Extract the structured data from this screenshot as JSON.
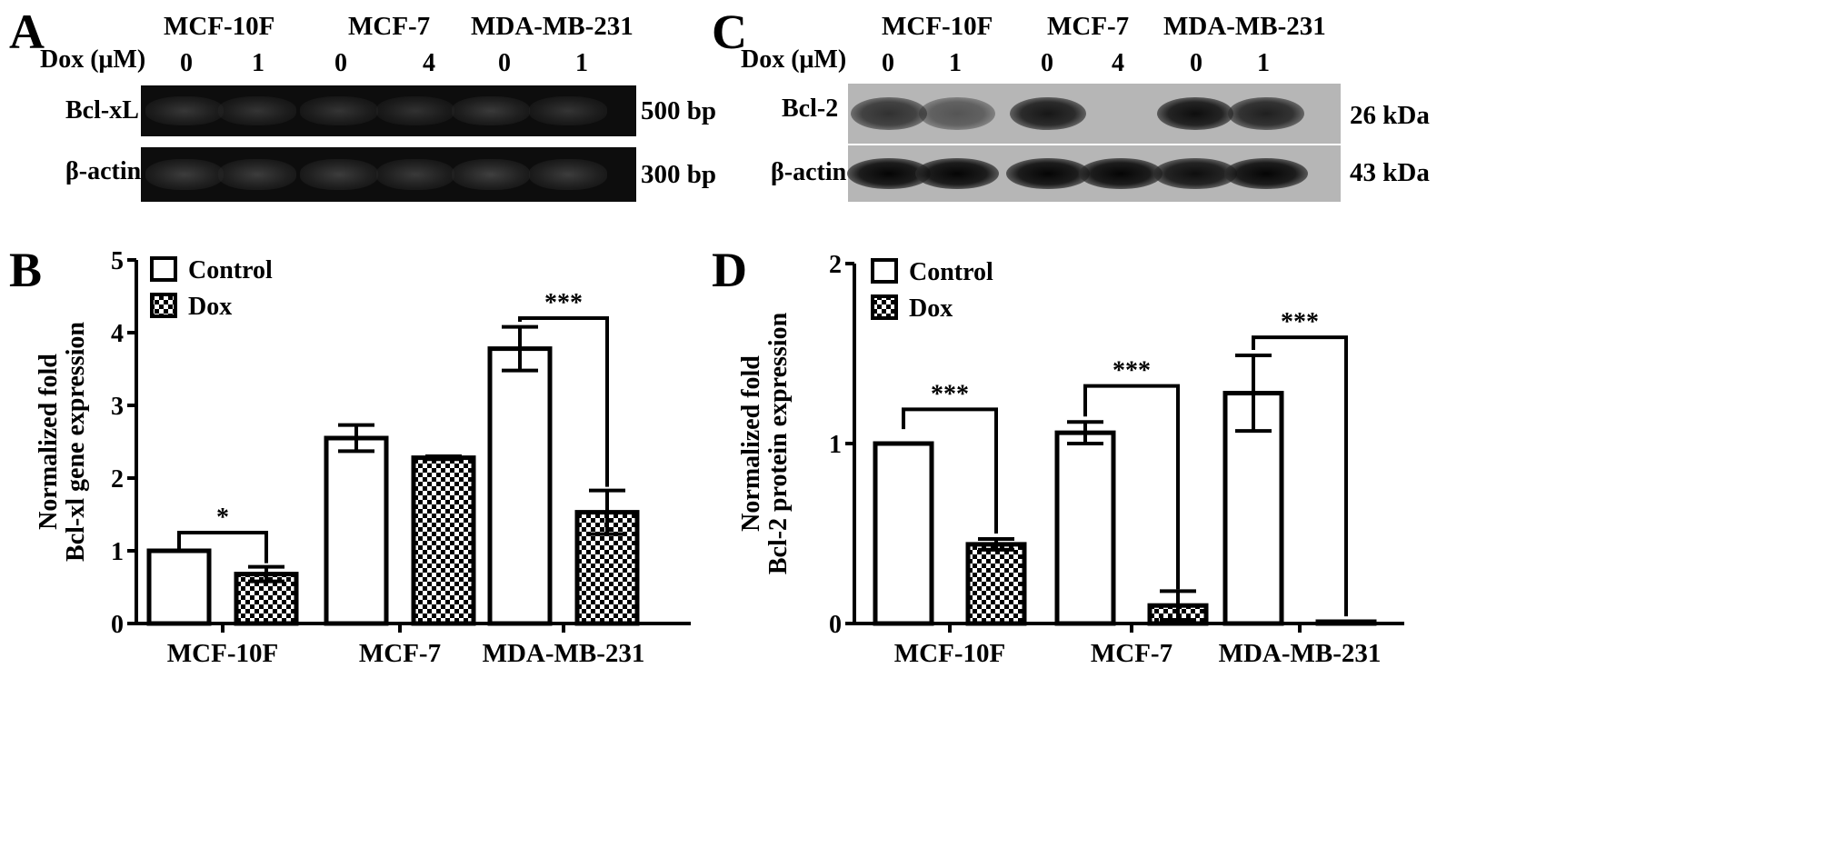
{
  "panel_a": {
    "letter": "A",
    "cell_lines": [
      "MCF-10F",
      "MCF-7",
      "MDA-MB-231"
    ],
    "dox_label": "Dox (μM)",
    "doses": [
      "0",
      "1",
      "0",
      "4",
      "0",
      "1"
    ],
    "rows": [
      {
        "label": "Bcl-xL",
        "size": "500 bp",
        "intensity": [
          0.75,
          0.7,
          0.7,
          0.65,
          0.8,
          0.7
        ]
      },
      {
        "label": "β-actin",
        "size": "300 bp",
        "intensity": [
          0.85,
          0.85,
          0.85,
          0.8,
          0.9,
          0.85
        ]
      }
    ]
  },
  "panel_c": {
    "letter": "C",
    "cell_lines": [
      "MCF-10F",
      "MCF-7",
      "MDA-MB-231"
    ],
    "dox_label": "Dox (μM)",
    "doses": [
      "0",
      "1",
      "0",
      "4",
      "0",
      "1"
    ],
    "rows": [
      {
        "label": "Bcl-2",
        "size": "26 kDa",
        "intensity": [
          0.75,
          0.55,
          0.9,
          0.0,
          0.95,
          0.85
        ]
      },
      {
        "label": "β-actin",
        "size": "43 kDa",
        "intensity": [
          1.0,
          1.0,
          1.0,
          1.0,
          0.95,
          1.0
        ]
      }
    ]
  },
  "chart_data": [
    {
      "type": "bar",
      "panel": "B",
      "title": "",
      "xlabel": "",
      "ylabel": "Normalized fold\nBcl-xl gene expression",
      "ylim": [
        0,
        5
      ],
      "yticks": [
        0,
        1,
        2,
        3,
        4,
        5
      ],
      "categories": [
        "MCF-10F",
        "MCF-7",
        "MDA-MB-231"
      ],
      "legend_position": "top-left",
      "series": [
        {
          "name": "Control",
          "pattern": "open",
          "values": [
            1.0,
            2.55,
            3.78
          ],
          "errors": [
            0.0,
            0.18,
            0.3
          ]
        },
        {
          "name": "Dox",
          "pattern": "checkered",
          "values": [
            0.68,
            2.28,
            1.53
          ],
          "errors": [
            0.1,
            0.02,
            0.3
          ]
        }
      ],
      "significance": [
        "*",
        "",
        "***"
      ]
    },
    {
      "type": "bar",
      "panel": "D",
      "title": "",
      "xlabel": "",
      "ylabel": "Normalized fold\nBcl-2 protein expression",
      "ylim": [
        0,
        2
      ],
      "yticks": [
        0,
        1,
        2
      ],
      "categories": [
        "MCF-10F",
        "MCF-7",
        "MDA-MB-231"
      ],
      "legend_position": "top-left",
      "series": [
        {
          "name": "Control",
          "pattern": "open",
          "values": [
            1.0,
            1.06,
            1.28
          ],
          "errors": [
            0.0,
            0.06,
            0.21
          ]
        },
        {
          "name": "Dox",
          "pattern": "checkered",
          "values": [
            0.44,
            0.1,
            0.0
          ],
          "errors": [
            0.03,
            0.08,
            0.0
          ]
        }
      ],
      "significance": [
        "***",
        "***",
        "***"
      ]
    }
  ]
}
